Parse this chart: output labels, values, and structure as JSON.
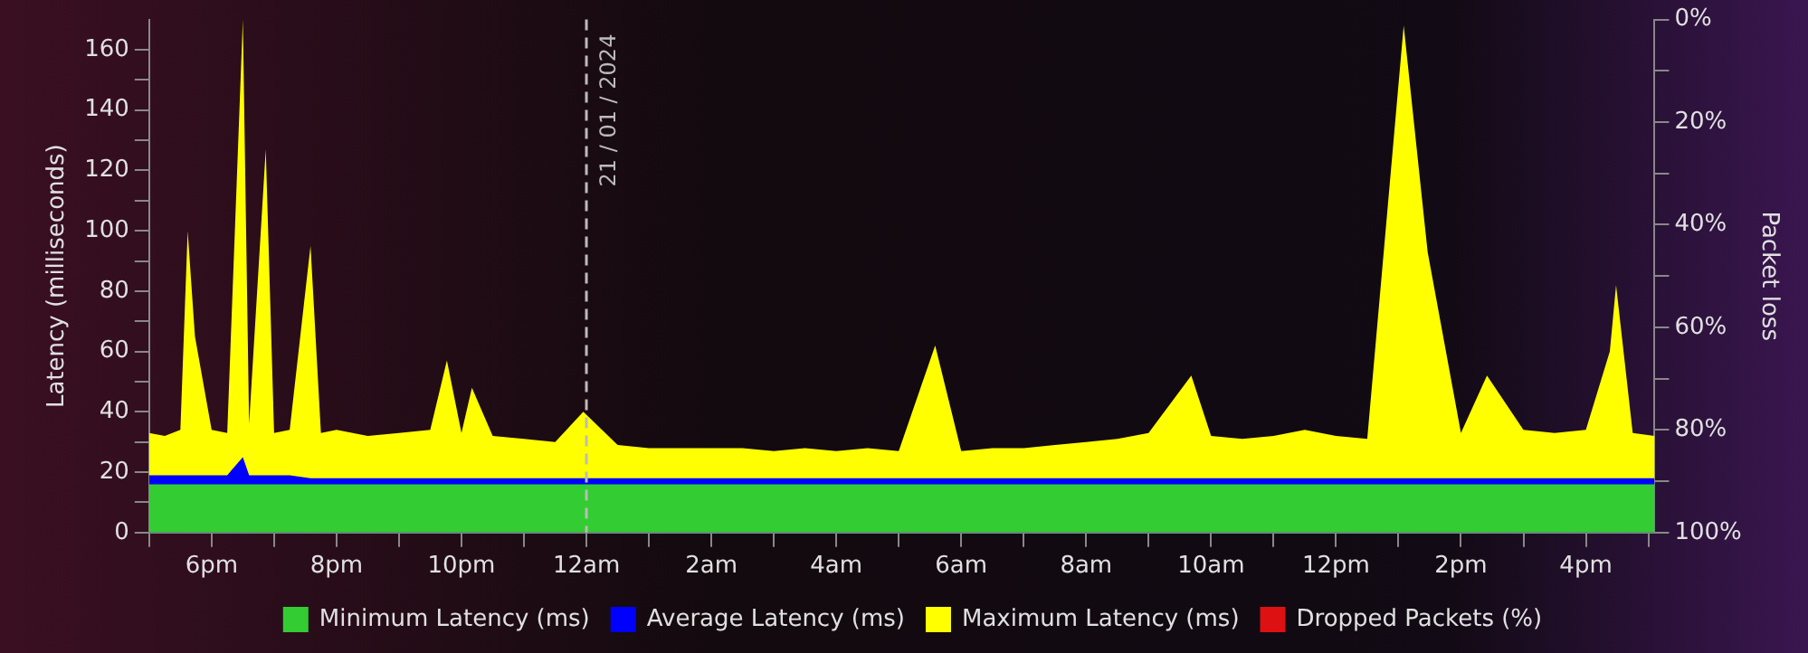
{
  "chart_data": {
    "type": "area",
    "xlabel": null,
    "ylabel": "Latency (milliseconds)",
    "y2label": "Packet loss",
    "x": [
      "2024-01-20T17:00",
      "2024-01-20T17:15",
      "2024-01-20T17:30",
      "2024-01-20T17:37",
      "2024-01-20T17:44",
      "2024-01-20T18:00",
      "2024-01-20T18:15",
      "2024-01-20T18:30",
      "2024-01-20T18:36",
      "2024-01-20T18:52",
      "2024-01-20T19:00",
      "2024-01-20T19:15",
      "2024-01-20T19:35",
      "2024-01-20T19:45",
      "2024-01-20T20:00",
      "2024-01-20T20:30",
      "2024-01-20T21:00",
      "2024-01-20T21:30",
      "2024-01-20T21:46",
      "2024-01-20T22:00",
      "2024-01-20T22:10",
      "2024-01-20T22:30",
      "2024-01-20T23:00",
      "2024-01-20T23:30",
      "2024-01-20T23:57",
      "2024-01-21T00:30",
      "2024-01-21T01:00",
      "2024-01-21T01:30",
      "2024-01-21T02:00",
      "2024-01-21T02:30",
      "2024-01-21T03:00",
      "2024-01-21T03:30",
      "2024-01-21T04:00",
      "2024-01-21T04:30",
      "2024-01-21T05:00",
      "2024-01-21T05:35",
      "2024-01-21T06:00",
      "2024-01-21T06:30",
      "2024-01-21T07:00",
      "2024-01-21T07:30",
      "2024-01-21T08:00",
      "2024-01-21T08:30",
      "2024-01-21T09:00",
      "2024-01-21T09:41",
      "2024-01-21T10:00",
      "2024-01-21T10:30",
      "2024-01-21T11:00",
      "2024-01-21T11:30",
      "2024-01-21T12:00",
      "2024-01-21T12:30",
      "2024-01-21T13:05",
      "2024-01-21T13:28",
      "2024-01-21T14:00",
      "2024-01-21T14:25",
      "2024-01-21T15:00",
      "2024-01-21T15:30",
      "2024-01-21T16:00",
      "2024-01-21T16:23",
      "2024-01-21T16:29",
      "2024-01-21T16:45",
      "2024-01-21T17:06"
    ],
    "series": [
      {
        "name": "Minimum Latency (ms)",
        "color": "#33cc33",
        "values": [
          16,
          16,
          16,
          16,
          16,
          16,
          16,
          16,
          16,
          16,
          16,
          16,
          16,
          16,
          16,
          16,
          16,
          16,
          16,
          16,
          16,
          16,
          16,
          16,
          16,
          16,
          16,
          16,
          16,
          16,
          16,
          16,
          16,
          16,
          16,
          16,
          16,
          16,
          16,
          16,
          16,
          16,
          16,
          16,
          16,
          16,
          16,
          16,
          16,
          16,
          16,
          16,
          16,
          16,
          16,
          16,
          16,
          16,
          16,
          16,
          16
        ]
      },
      {
        "name": "Average Latency (ms)",
        "color": "#0000ff",
        "values": [
          19,
          19,
          19,
          19,
          19,
          19,
          19,
          25,
          19,
          19,
          19,
          19,
          18,
          18,
          18,
          18,
          18,
          18,
          18,
          18,
          18,
          18,
          18,
          18,
          18,
          18,
          18,
          18,
          18,
          18,
          18,
          18,
          18,
          18,
          18,
          18,
          18,
          18,
          18,
          18,
          18,
          18,
          18,
          18,
          18,
          18,
          18,
          18,
          18,
          18,
          18,
          18,
          18,
          18,
          18,
          18,
          18,
          18,
          18,
          18,
          18
        ]
      },
      {
        "name": "Maximum Latency (ms)",
        "color": "#ffff00",
        "values": [
          33,
          32,
          34,
          100,
          65,
          34,
          33,
          170,
          36,
          127,
          33,
          34,
          95,
          33,
          34,
          32,
          33,
          34,
          57,
          33,
          48,
          32,
          31,
          30,
          40,
          29,
          28,
          28,
          28,
          28,
          27,
          28,
          27,
          28,
          27,
          62,
          27,
          28,
          28,
          29,
          30,
          31,
          33,
          52,
          32,
          31,
          32,
          34,
          32,
          31,
          168,
          93,
          33,
          52,
          34,
          33,
          34,
          60,
          82,
          33,
          32
        ]
      },
      {
        "name": "Dropped Packets (%)",
        "color": "#dd1111",
        "values": [
          null,
          null,
          null,
          null,
          null,
          null,
          null,
          null,
          null,
          null,
          null,
          null,
          null,
          null,
          null,
          null,
          null,
          null,
          null,
          null,
          null,
          null,
          null,
          null,
          null,
          null,
          null,
          null,
          null,
          null,
          null,
          null,
          null,
          null,
          null,
          null,
          null,
          null,
          null,
          null,
          null,
          null,
          null,
          null,
          null,
          null,
          null,
          null,
          null,
          null,
          null,
          null,
          null,
          null,
          null,
          null,
          null,
          null,
          null,
          null,
          null
        ]
      }
    ],
    "xlim": [
      "2024-01-20T17:00",
      "2024-01-21T17:06"
    ],
    "xticks": [
      {
        "value": "2024-01-20T17:00",
        "label": null
      },
      {
        "value": "2024-01-20T18:00",
        "label": "6pm"
      },
      {
        "value": "2024-01-20T19:00",
        "label": null
      },
      {
        "value": "2024-01-20T20:00",
        "label": "8pm"
      },
      {
        "value": "2024-01-20T21:00",
        "label": null
      },
      {
        "value": "2024-01-20T22:00",
        "label": "10pm"
      },
      {
        "value": "2024-01-20T23:00",
        "label": null
      },
      {
        "value": "2024-01-21T00:00",
        "label": "12am"
      },
      {
        "value": "2024-01-21T01:00",
        "label": null
      },
      {
        "value": "2024-01-21T02:00",
        "label": "2am"
      },
      {
        "value": "2024-01-21T03:00",
        "label": null
      },
      {
        "value": "2024-01-21T04:00",
        "label": "4am"
      },
      {
        "value": "2024-01-21T05:00",
        "label": null
      },
      {
        "value": "2024-01-21T06:00",
        "label": "6am"
      },
      {
        "value": "2024-01-21T07:00",
        "label": null
      },
      {
        "value": "2024-01-21T08:00",
        "label": "8am"
      },
      {
        "value": "2024-01-21T09:00",
        "label": null
      },
      {
        "value": "2024-01-21T10:00",
        "label": "10am"
      },
      {
        "value": "2024-01-21T11:00",
        "label": null
      },
      {
        "value": "2024-01-21T12:00",
        "label": "12pm"
      },
      {
        "value": "2024-01-21T13:00",
        "label": null
      },
      {
        "value": "2024-01-21T14:00",
        "label": "2pm"
      },
      {
        "value": "2024-01-21T15:00",
        "label": null
      },
      {
        "value": "2024-01-21T16:00",
        "label": "4pm"
      },
      {
        "value": "2024-01-21T17:00",
        "label": null
      }
    ],
    "ylim": [
      0,
      170
    ],
    "yticks": [
      0,
      {
        "value": 10,
        "label": null
      },
      20,
      {
        "value": 30,
        "label": null
      },
      40,
      {
        "value": 50,
        "label": null
      },
      60,
      {
        "value": 70,
        "label": null
      },
      80,
      {
        "value": 90,
        "label": null
      },
      100,
      {
        "value": 110,
        "label": null
      },
      120,
      {
        "value": 130,
        "label": null
      },
      140,
      {
        "value": 150,
        "label": null
      },
      160
    ],
    "y2lim": [
      100,
      0
    ],
    "y2ticks": [
      {
        "value": 0,
        "label": "0%"
      },
      {
        "value": 10,
        "label": null
      },
      {
        "value": 20,
        "label": "20%"
      },
      {
        "value": 30,
        "label": null
      },
      {
        "value": 40,
        "label": "40%"
      },
      {
        "value": 50,
        "label": null
      },
      {
        "value": 60,
        "label": "60%"
      },
      {
        "value": 70,
        "label": null
      },
      {
        "value": 80,
        "label": "80%"
      },
      {
        "value": 90,
        "label": null
      },
      {
        "value": 100,
        "label": "100%"
      }
    ],
    "ref_lines": [
      {
        "axis": "x",
        "value": "2024-01-21T00:00",
        "label": "21 / 01 / 2024",
        "color": "#bbbbbb",
        "line_style": "dashed"
      }
    ],
    "grid": false,
    "legend": "bottom",
    "marker": "none"
  }
}
